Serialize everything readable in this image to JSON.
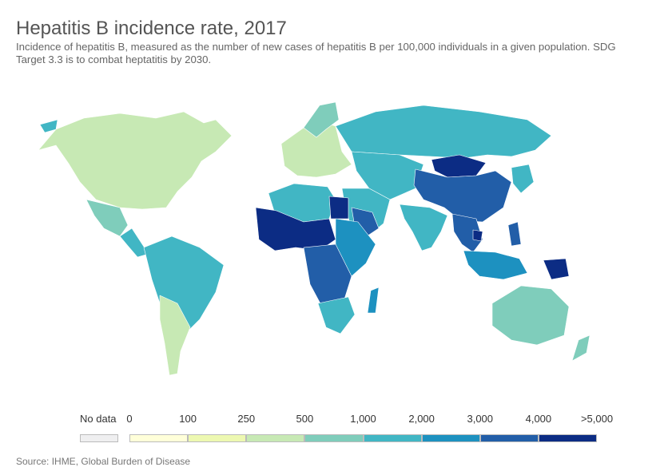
{
  "title": "Hepatitis B incidence rate, 2017",
  "subtitle": "Incidence of hepatitis B, measured as the number of new cases of hepatitis B per 100,000 individuals in a given population. SDG Target 3.3 is to combat heptatitis by 2030.",
  "source": "Source: IHME, Global Burden of Disease",
  "legend": {
    "no_data_label": "No data",
    "no_data_color": "#efeff0",
    "ticks": [
      "0",
      "100",
      "250",
      "500",
      "1,000",
      "2,000",
      "3,000",
      "4,000",
      ">5,000"
    ],
    "bin_colors": [
      "#ffffd9",
      "#edf8b1",
      "#c7e9b4",
      "#7fcdbb",
      "#41b6c4",
      "#1d91c0",
      "#225ea8",
      "#0c2c84"
    ]
  }
}
